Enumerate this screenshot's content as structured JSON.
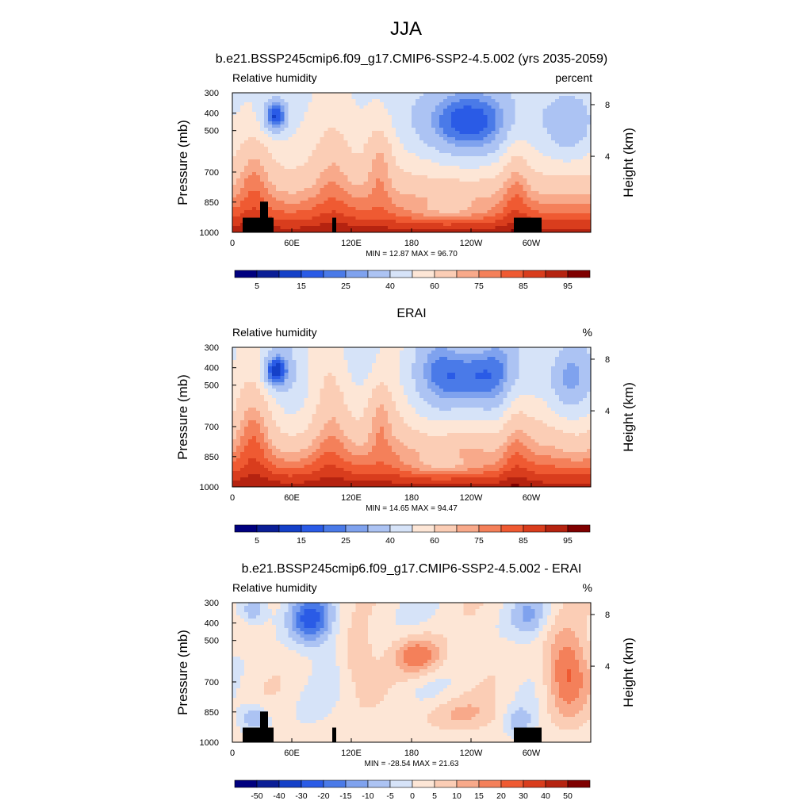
{
  "page_title": "JJA",
  "chart_data": [
    {
      "type": "heatmap",
      "title": "b.e21.BSSP245cmip6.f09_g17.CMIP6-SSP2-4.5.002 (yrs 2035-2059)",
      "left_label": "Relative humidity",
      "units": "percent",
      "ylabel": "Pressure (mb)",
      "ylabel_right": "Height (km)",
      "xticks": [
        "0",
        "60E",
        "120E",
        "180",
        "120W",
        "60W"
      ],
      "yticks": [
        "300",
        "400",
        "500",
        "700",
        "850",
        "1000"
      ],
      "yticks_right": [
        "8",
        "4"
      ],
      "stats": "MIN =  12.87  MAX =  96.70",
      "colorbar_labels": [
        "5",
        "15",
        "25",
        "40",
        "60",
        "75",
        "85",
        "95"
      ],
      "colorbar_levels": 16,
      "ylim": [
        1000,
        300
      ],
      "xlim": [
        0,
        360
      ]
    },
    {
      "type": "heatmap",
      "title": "ERAI",
      "left_label": "Relative humidity",
      "units": "%",
      "ylabel": "Pressure (mb)",
      "ylabel_right": "Height (km)",
      "xticks": [
        "0",
        "60E",
        "120E",
        "180",
        "120W",
        "60W"
      ],
      "yticks": [
        "300",
        "400",
        "500",
        "700",
        "850",
        "1000"
      ],
      "yticks_right": [
        "8",
        "4"
      ],
      "stats": "MIN =  14.65  MAX =  94.47",
      "colorbar_labels": [
        "5",
        "15",
        "25",
        "40",
        "60",
        "75",
        "85",
        "95"
      ],
      "colorbar_levels": 16,
      "ylim": [
        1000,
        300
      ],
      "xlim": [
        0,
        360
      ]
    },
    {
      "type": "heatmap",
      "title": "b.e21.BSSP245cmip6.f09_g17.CMIP6-SSP2-4.5.002 - ERAI",
      "left_label": "Relative humidity",
      "units": "%",
      "ylabel": "Pressure (mb)",
      "ylabel_right": "Height (km)",
      "xticks": [
        "0",
        "60E",
        "120E",
        "180",
        "120W",
        "60W"
      ],
      "yticks": [
        "300",
        "400",
        "500",
        "700",
        "850",
        "1000"
      ],
      "yticks_right": [
        "8",
        "4"
      ],
      "stats": "MIN = -28.54  MAX =  21.63",
      "colorbar_labels": [
        "-50",
        "-40",
        "-30",
        "-20",
        "-15",
        "-10",
        "-5",
        "0",
        "5",
        "10",
        "15",
        "20",
        "30",
        "40",
        "50"
      ],
      "colorbar_levels": 16,
      "ylim": [
        1000,
        300
      ],
      "xlim": [
        0,
        360
      ]
    }
  ],
  "colormap": [
    "#00007f",
    "#0a1e96",
    "#1440c8",
    "#2a5be6",
    "#4a7ae8",
    "#7fa2ee",
    "#acc3f3",
    "#d6e3f8",
    "#fde6d6",
    "#fbcdb5",
    "#f8a98a",
    "#f4805a",
    "#ef5a32",
    "#d93d1d",
    "#b52310",
    "#7f0000"
  ]
}
